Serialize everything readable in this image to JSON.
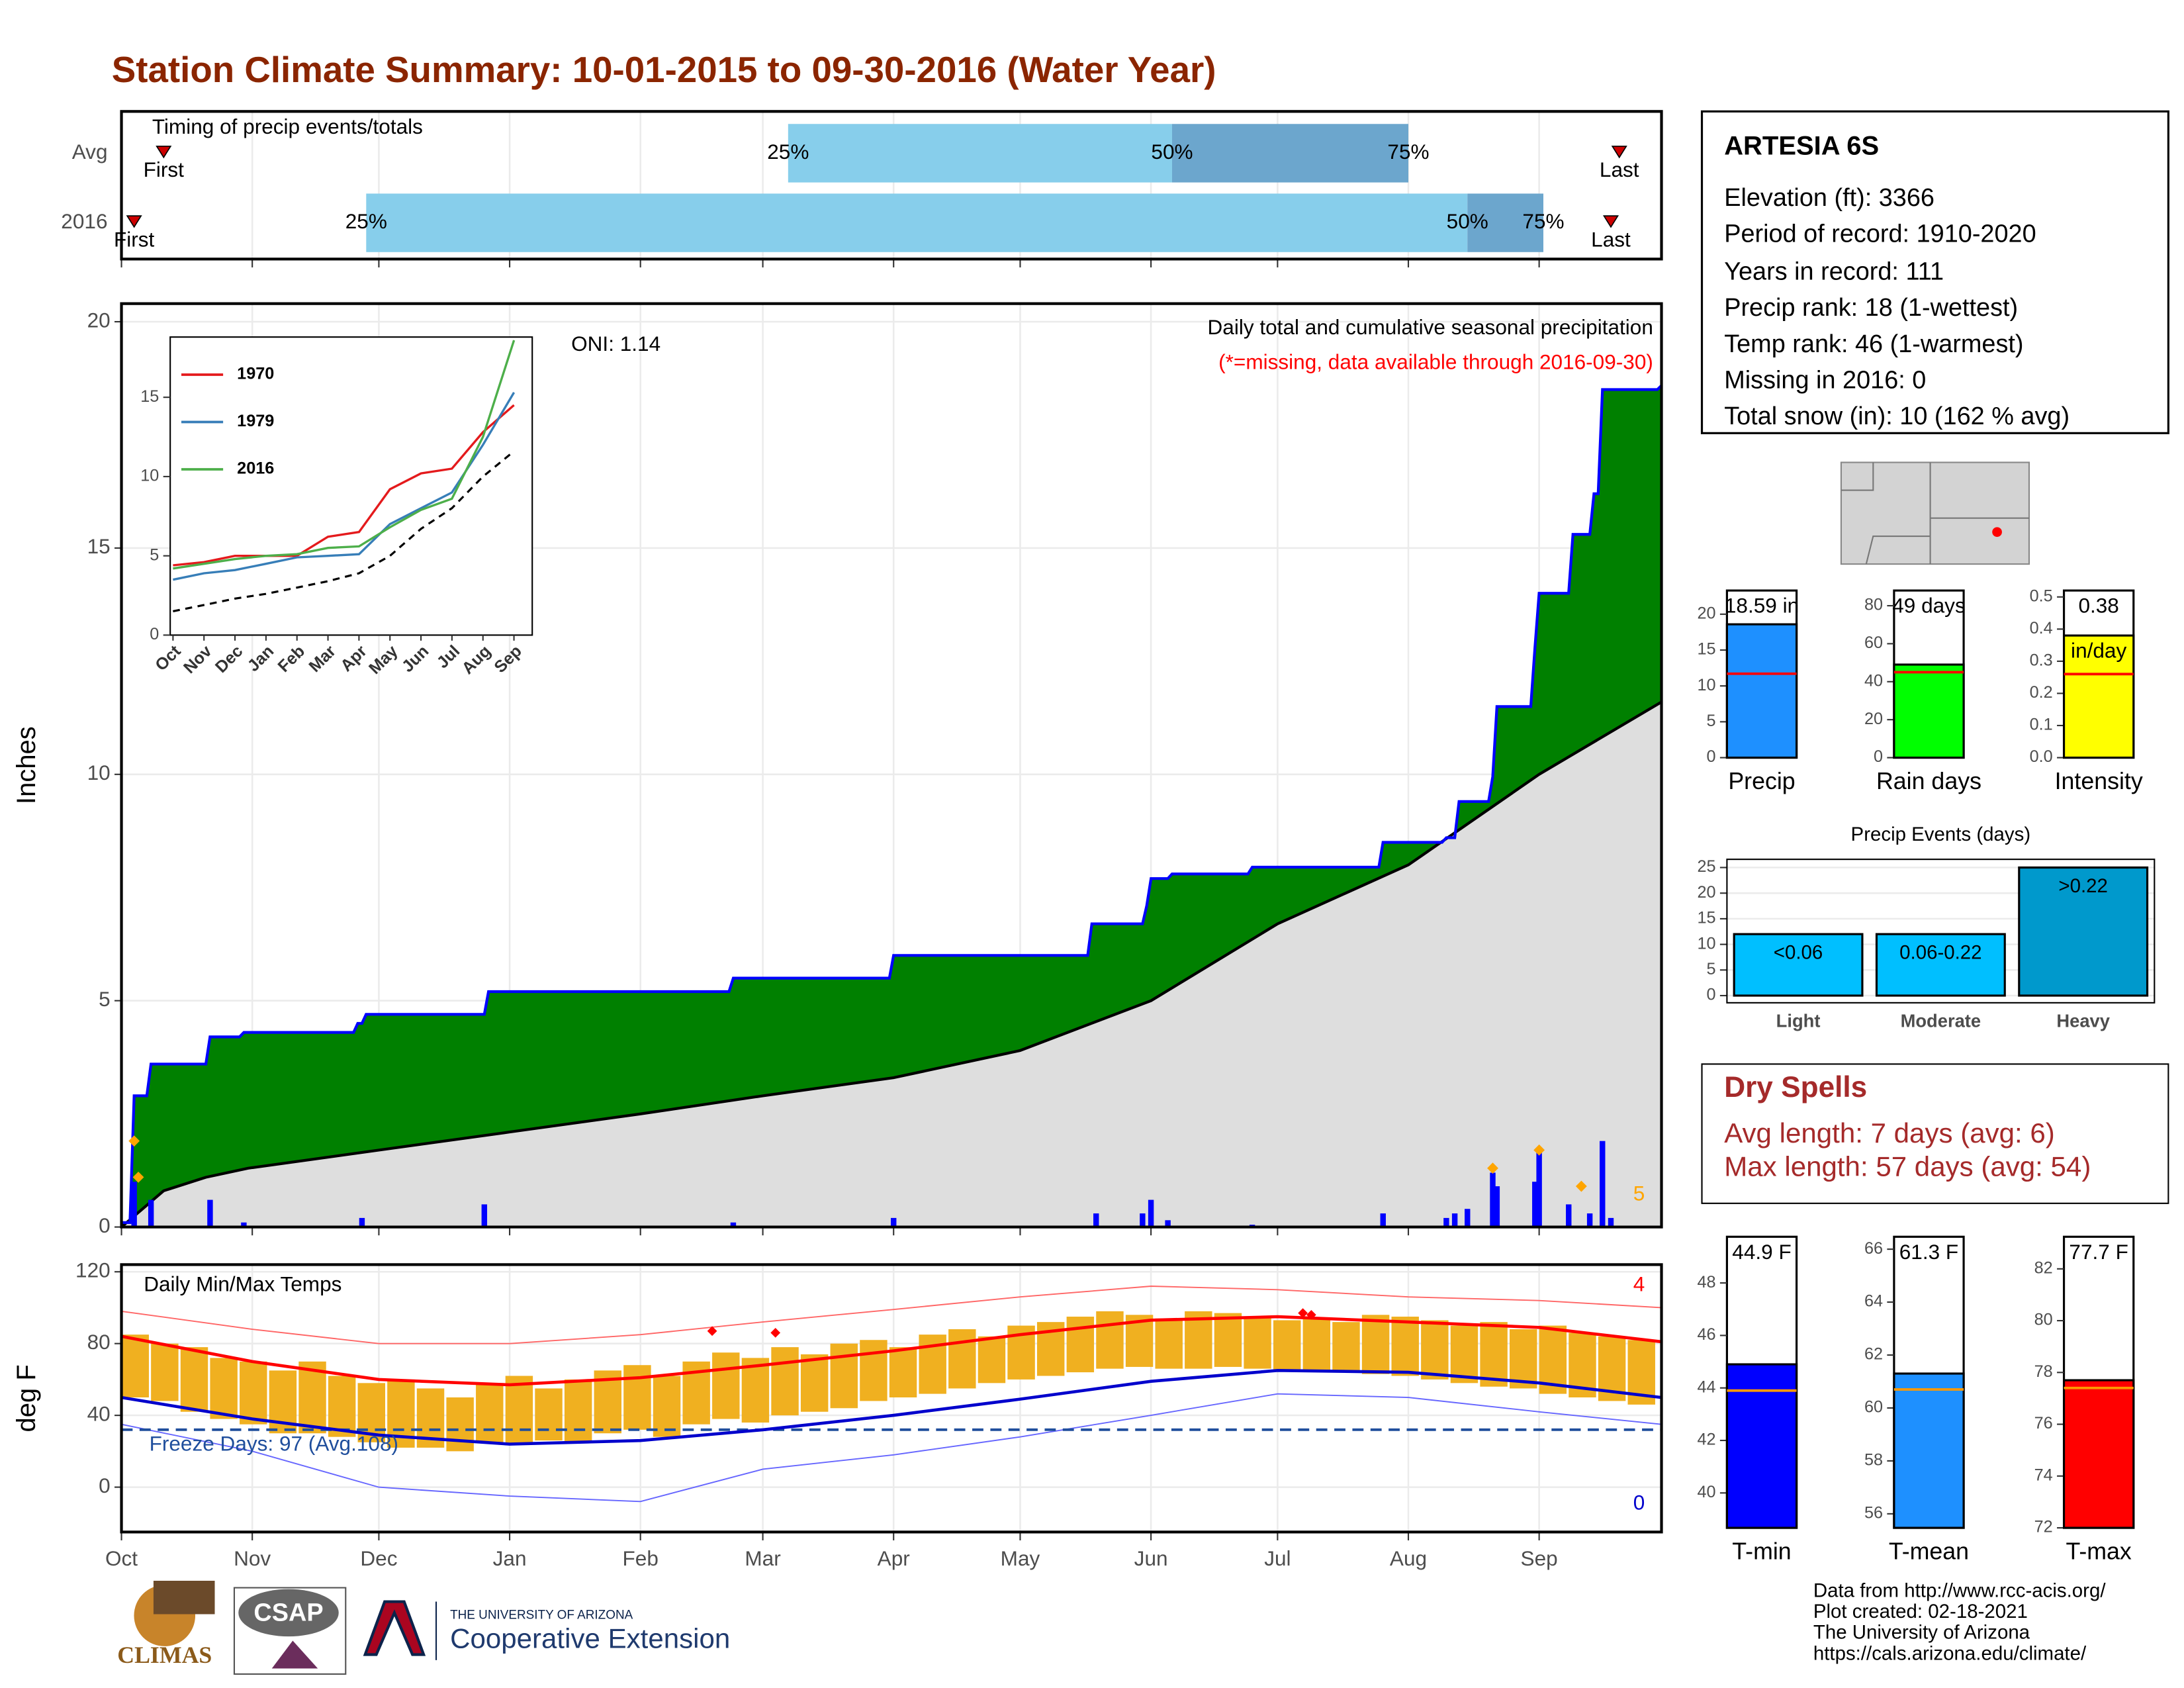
{
  "title": "Station Climate Summary: 10-01-2015 to 09-30-2016 (Water Year)",
  "station": {
    "name": "ARTESIA 6S",
    "lines": [
      "Elevation (ft): 3366",
      "Period of record: 1910-2020",
      "Years in record: 111",
      "Precip rank: 18 (1-wettest)",
      "Temp rank: 46 (1-warmest)",
      "Missing in 2016: 0",
      "Total snow (in): 10 (162 % avg)"
    ]
  },
  "dry_spells": {
    "title": "Dry Spells",
    "lines": [
      "Avg length: 7 days (avg: 6)",
      "Max length: 57 days (avg: 54)"
    ]
  },
  "credits": [
    "Data from http://www.rcc-acis.org/",
    "Plot created: 02-18-2021",
    "The University of Arizona",
    "https://cals.arizona.edu/climate/"
  ],
  "logos": {
    "climas": "CLIMAS",
    "csap": "CSAP",
    "university": "THE UNIVERSITY OF ARIZONA",
    "extension": "Cooperative Extension"
  },
  "chart_data": [
    {
      "type": "timing",
      "title": "Timing of precip events/totals",
      "point_labels": [
        "First",
        "25%",
        "50%",
        "75%",
        "Last"
      ],
      "series": [
        {
          "name": "Avg",
          "values": [
            10,
            158,
            249,
            305,
            355
          ]
        },
        {
          "name": "2016",
          "values": [
            3,
            58,
            319,
            337,
            353
          ]
        }
      ],
      "colors": [
        "#87ceeb",
        "#6ca6cd"
      ],
      "marker_color": "#cc0000",
      "xlim": [
        0,
        365
      ],
      "xticks": [
        0,
        31,
        61,
        92,
        123,
        152,
        183,
        213,
        244,
        274,
        305,
        336
      ]
    },
    {
      "type": "cumulative-precip",
      "ylabel": "Inches",
      "annotations": [
        "ONI: 1.14",
        "Daily total and cumulative seasonal precipitation",
        "(*=missing, data available through 2016-09-30)"
      ],
      "marker_count": 5,
      "xlim": [
        0,
        365
      ],
      "ylim": [
        0,
        20.4
      ],
      "yticks": [
        0,
        5,
        10,
        15,
        20
      ],
      "xticks": [
        0,
        31,
        61,
        92,
        123,
        152,
        183,
        213,
        244,
        274,
        305,
        336
      ],
      "grid": true,
      "observed": {
        "x": [
          0,
          2,
          3,
          6,
          7,
          20,
          21,
          28,
          29,
          55,
          56,
          57,
          58,
          86,
          87,
          144,
          145,
          182,
          183,
          229,
          230,
          242,
          243,
          244,
          248,
          249,
          267,
          268,
          298,
          299,
          313,
          314,
          316,
          317,
          324,
          325,
          326,
          334,
          335,
          336,
          343,
          344,
          348,
          349,
          350,
          351,
          364,
          365
        ],
        "values": [
          0.1,
          0.1,
          2.9,
          2.9,
          3.6,
          3.6,
          4.2,
          4.2,
          4.3,
          4.3,
          4.5,
          4.5,
          4.7,
          4.7,
          5.2,
          5.2,
          5.5,
          5.5,
          6.0,
          6.0,
          6.7,
          6.7,
          7.1,
          7.7,
          7.7,
          7.8,
          7.8,
          7.95,
          7.95,
          8.5,
          8.5,
          8.6,
          8.6,
          9.4,
          9.4,
          9.95,
          11.5,
          11.5,
          12.8,
          14.0,
          14.0,
          15.3,
          15.3,
          16.2,
          16.2,
          18.5,
          18.5,
          18.59
        ],
        "color": "#0000ff",
        "fill": "#008000"
      },
      "average": {
        "x": [
          0,
          10,
          20,
          30,
          61,
          92,
          123,
          152,
          183,
          213,
          244,
          274,
          305,
          336,
          365
        ],
        "values": [
          0,
          0.8,
          1.1,
          1.3,
          1.7,
          2.1,
          2.5,
          2.9,
          3.3,
          3.9,
          5.0,
          6.7,
          8.0,
          10.0,
          11.6
        ],
        "color": "#000000",
        "fill": "#dedede"
      },
      "daily": {
        "x": [
          3,
          7,
          21,
          29,
          57,
          86,
          145,
          183,
          231,
          242,
          244,
          248,
          268,
          299,
          314,
          316,
          319,
          325,
          326,
          335,
          336,
          343,
          348,
          351,
          353
        ],
        "values": [
          1.0,
          0.6,
          0.6,
          0.1,
          0.2,
          0.5,
          0.1,
          0.2,
          0.3,
          0.3,
          0.6,
          0.15,
          0.05,
          0.3,
          0.2,
          0.3,
          0.4,
          1.2,
          0.9,
          1.0,
          1.7,
          0.5,
          0.3,
          1.9,
          0.2
        ],
        "color": "#0000ff"
      },
      "heavy": {
        "x": [
          3,
          4,
          325,
          336,
          346
        ],
        "values": [
          1.9,
          1.1,
          1.3,
          1.7,
          0.9
        ],
        "color": "#ffa500"
      }
    },
    {
      "type": "line",
      "categories": [
        "Oct",
        "Nov",
        "Dec",
        "Jan",
        "Feb",
        "Mar",
        "Apr",
        "May",
        "Jun",
        "Jul",
        "Aug",
        "Sep"
      ],
      "ylim": [
        0,
        18.8
      ],
      "yticks": [
        0,
        5,
        10,
        15
      ],
      "series": [
        {
          "name": "1970",
          "color": "#e41a1c",
          "values": [
            4.4,
            4.6,
            5.0,
            5.0,
            5.0,
            6.2,
            6.5,
            9.2,
            10.2,
            10.5,
            12.8,
            14.5
          ]
        },
        {
          "name": "1979",
          "color": "#377eb8",
          "values": [
            3.5,
            3.9,
            4.1,
            4.5,
            4.9,
            5.0,
            5.1,
            7.0,
            8.0,
            9.0,
            12.0,
            15.3
          ]
        },
        {
          "name": "2016",
          "color": "#4daf4a",
          "values": [
            4.2,
            4.5,
            4.8,
            5.0,
            5.1,
            5.5,
            5.6,
            6.8,
            7.9,
            8.6,
            12.5,
            18.6
          ]
        }
      ],
      "average": {
        "values": [
          1.5,
          1.9,
          2.3,
          2.6,
          3.0,
          3.4,
          3.9,
          5.0,
          6.7,
          8.0,
          10.0,
          11.6
        ],
        "color": "#000000"
      }
    },
    {
      "type": "temperature",
      "title": "Daily Min/Max Temps",
      "annotation": "Freeze Days: 97 (Avg.108)",
      "record_high_count": 4,
      "record_low_count": 0,
      "ylabel": "deg F",
      "xlim": [
        0,
        365
      ],
      "ylim": [
        -25,
        124
      ],
      "yticks": [
        0,
        40,
        80,
        120
      ],
      "freeze_line": 32,
      "grid": true,
      "xticks": [
        {
          "value": 0,
          "label": "Oct"
        },
        {
          "value": 31,
          "label": "Nov"
        },
        {
          "value": 61,
          "label": "Dec"
        },
        {
          "value": 92,
          "label": "Jan"
        },
        {
          "value": 123,
          "label": "Feb"
        },
        {
          "value": 152,
          "label": "Mar"
        },
        {
          "value": 183,
          "label": "Apr"
        },
        {
          "value": 213,
          "label": "May"
        },
        {
          "value": 244,
          "label": "Jun"
        },
        {
          "value": 274,
          "label": "Jul"
        },
        {
          "value": 305,
          "label": "Aug"
        },
        {
          "value": 336,
          "label": "Sep"
        }
      ],
      "observed": {
        "x": [
          0,
          7,
          14,
          21,
          28,
          35,
          42,
          49,
          56,
          63,
          70,
          77,
          84,
          91,
          98,
          105,
          112,
          119,
          126,
          133,
          140,
          147,
          154,
          161,
          168,
          175,
          182,
          189,
          196,
          203,
          210,
          217,
          224,
          231,
          238,
          245,
          252,
          259,
          266,
          273,
          280,
          287,
          294,
          301,
          308,
          315,
          322,
          329,
          336,
          343,
          350,
          357
        ],
        "high": [
          85,
          80,
          78,
          72,
          70,
          65,
          70,
          62,
          58,
          60,
          55,
          50,
          58,
          62,
          55,
          60,
          65,
          68,
          62,
          70,
          75,
          72,
          78,
          74,
          80,
          82,
          78,
          85,
          88,
          84,
          90,
          92,
          95,
          98,
          96,
          94,
          98,
          97,
          95,
          93,
          94,
          92,
          96,
          95,
          93,
          90,
          92,
          88,
          90,
          86,
          84,
          82
        ],
        "low": [
          50,
          48,
          42,
          38,
          35,
          30,
          30,
          28,
          25,
          22,
          22,
          20,
          25,
          24,
          26,
          25,
          30,
          32,
          28,
          35,
          38,
          36,
          40,
          42,
          44,
          48,
          50,
          52,
          55,
          58,
          60,
          62,
          64,
          66,
          67,
          66,
          66,
          67,
          66,
          65,
          65,
          64,
          63,
          62,
          60,
          58,
          56,
          55,
          52,
          50,
          48,
          46
        ],
        "color": "#f0b020"
      },
      "normal_high": {
        "x": [
          0,
          31,
          61,
          92,
          123,
          152,
          183,
          213,
          244,
          274,
          305,
          336,
          365
        ],
        "values": [
          84,
          70,
          60,
          57,
          61,
          68,
          76,
          85,
          93,
          95,
          92,
          89,
          81
        ],
        "color": "#ff0000"
      },
      "normal_low": {
        "x": [
          0,
          31,
          61,
          92,
          123,
          152,
          183,
          213,
          244,
          274,
          305,
          336,
          365
        ],
        "values": [
          50,
          38,
          29,
          24,
          26,
          32,
          40,
          49,
          59,
          65,
          64,
          58,
          50
        ],
        "color": "#0000cc"
      },
      "record_high": {
        "x": [
          0,
          31,
          61,
          92,
          123,
          152,
          183,
          213,
          244,
          274,
          305,
          336,
          365
        ],
        "values": [
          98,
          88,
          80,
          80,
          85,
          92,
          99,
          106,
          112,
          110,
          106,
          104,
          100
        ],
        "color": "#ff6666"
      },
      "record_low": {
        "x": [
          0,
          31,
          61,
          92,
          123,
          152,
          183,
          213,
          244,
          274,
          305,
          336,
          365
        ],
        "values": [
          35,
          20,
          0,
          -5,
          -8,
          10,
          18,
          28,
          40,
          52,
          50,
          42,
          35
        ],
        "color": "#6666ff"
      },
      "new_records": {
        "x": [
          140,
          155,
          280,
          282
        ],
        "values": [
          87,
          86,
          97,
          96
        ],
        "color": "#ff0000"
      }
    },
    {
      "type": "summary-bar",
      "category": "Precip",
      "value": 18.59,
      "value_label": "18.59 in",
      "average": 11.7,
      "color": "#1e90ff",
      "average_color": "#ff0000",
      "ylim": [
        0,
        23.3
      ],
      "yticks": [
        0,
        5,
        10,
        15,
        20
      ]
    },
    {
      "type": "summary-bar",
      "category": "Rain days",
      "value": 49,
      "value_label": "49 days",
      "average": 45,
      "color": "#00ff00",
      "average_color": "#ff0000",
      "ylim": [
        0,
        88
      ],
      "yticks": [
        0,
        20,
        40,
        60,
        80
      ]
    },
    {
      "type": "summary-bar",
      "category": "Intensity",
      "value": 0.38,
      "value_label": "0.38",
      "unit": "in/day",
      "average": 0.26,
      "color": "#ffff00",
      "average_color": "#ff0000",
      "ylim": [
        0,
        0.52
      ],
      "yticks": [
        {
          "value": 0,
          "label": "0.0"
        },
        0.1,
        0.2,
        0.3,
        0.4,
        0.5
      ]
    },
    {
      "type": "bar",
      "title": "Precip Events (days)",
      "categories": [
        "Light",
        "Moderate",
        "Heavy"
      ],
      "values": [
        12,
        12,
        25
      ],
      "value_labels": [
        "<0.06",
        "0.06-0.22",
        ">0.22"
      ],
      "colors": [
        "#00bfff",
        "#00bfff",
        "#0099cc"
      ],
      "ylim": [
        -1.4,
        26.6
      ],
      "yticks": [
        0,
        5,
        10,
        15,
        20,
        25
      ],
      "grid": true
    },
    {
      "type": "summary-bar",
      "category": "T-min",
      "value": 44.9,
      "value_label": "44.9 F",
      "average": 43.9,
      "color": "#0000ff",
      "average_color": "#ff9900",
      "ylim": [
        38.67,
        49.76
      ],
      "yticks": [
        40,
        42,
        44,
        46,
        48
      ]
    },
    {
      "type": "summary-bar",
      "category": "T-mean",
      "value": 61.3,
      "value_label": "61.3 F",
      "average": 60.7,
      "color": "#1e90ff",
      "average_color": "#ff9900",
      "ylim": [
        55.47,
        66.47
      ],
      "yticks": [
        56,
        58,
        60,
        62,
        64,
        66
      ]
    },
    {
      "type": "summary-bar",
      "category": "T-max",
      "value": 77.7,
      "value_label": "77.7 F",
      "average": 77.4,
      "color": "#ff0000",
      "average_color": "#ff9900",
      "ylim": [
        72,
        83.24
      ],
      "yticks": [
        72,
        74,
        76,
        78,
        80,
        82
      ]
    }
  ]
}
